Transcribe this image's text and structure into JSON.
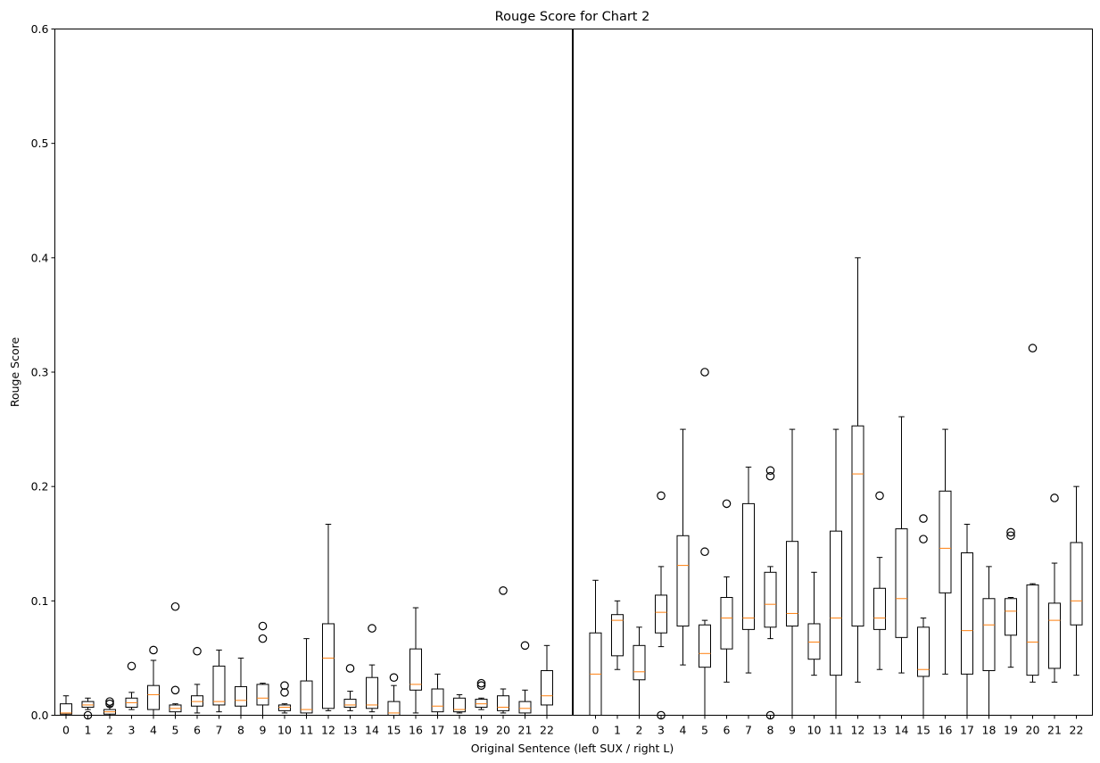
{
  "chart_data": {
    "type": "boxplot",
    "title": "Rouge Score for Chart 2",
    "xlabel": "Original Sentence (left SUX / right L)",
    "ylabel": "Rouge Score",
    "ylim": [
      0,
      0.6
    ],
    "yticks": [
      "0.0",
      "0.1",
      "0.2",
      "0.3",
      "0.4",
      "0.5",
      "0.6"
    ],
    "grid": false,
    "divider": "vertical line between left and right groups",
    "colors": {
      "box": "#000000",
      "median": "#ff7f0e",
      "outlier": "#000000"
    },
    "groups": [
      {
        "categories": [
          "0",
          "1",
          "2",
          "3",
          "4",
          "5",
          "6",
          "7",
          "8",
          "9",
          "10",
          "11",
          "12",
          "13",
          "14",
          "15",
          "16",
          "17",
          "18",
          "19",
          "20",
          "21",
          "22"
        ],
        "boxes": [
          {
            "wl": 0.0,
            "q1": 0.001,
            "med": 0.002,
            "q3": 0.01,
            "wh": 0.017,
            "outliers": []
          },
          {
            "wl": 0.005,
            "q1": 0.007,
            "med": 0.009,
            "q3": 0.012,
            "wh": 0.015,
            "outliers": [
              0.0
            ]
          },
          {
            "wl": 0.0,
            "q1": 0.001,
            "med": 0.003,
            "q3": 0.005,
            "wh": 0.008,
            "outliers": [
              0.01,
              0.012
            ]
          },
          {
            "wl": 0.005,
            "q1": 0.007,
            "med": 0.011,
            "q3": 0.015,
            "wh": 0.02,
            "outliers": [
              0.043
            ]
          },
          {
            "wl": 0.0,
            "q1": 0.005,
            "med": 0.018,
            "q3": 0.026,
            "wh": 0.048,
            "outliers": [
              0.057
            ]
          },
          {
            "wl": 0.0,
            "q1": 0.003,
            "med": 0.006,
            "q3": 0.009,
            "wh": 0.01,
            "outliers": [
              0.022,
              0.095
            ]
          },
          {
            "wl": 0.002,
            "q1": 0.008,
            "med": 0.012,
            "q3": 0.017,
            "wh": 0.027,
            "outliers": [
              0.056
            ]
          },
          {
            "wl": 0.003,
            "q1": 0.009,
            "med": 0.012,
            "q3": 0.043,
            "wh": 0.057,
            "outliers": []
          },
          {
            "wl": 0.0,
            "q1": 0.008,
            "med": 0.013,
            "q3": 0.025,
            "wh": 0.05,
            "outliers": []
          },
          {
            "wl": 0.0,
            "q1": 0.009,
            "med": 0.015,
            "q3": 0.027,
            "wh": 0.028,
            "outliers": [
              0.067,
              0.078
            ]
          },
          {
            "wl": 0.002,
            "q1": 0.004,
            "med": 0.007,
            "q3": 0.009,
            "wh": 0.01,
            "outliers": [
              0.02,
              0.026
            ]
          },
          {
            "wl": 0.0,
            "q1": 0.002,
            "med": 0.005,
            "q3": 0.03,
            "wh": 0.067,
            "outliers": []
          },
          {
            "wl": 0.004,
            "q1": 0.006,
            "med": 0.05,
            "q3": 0.08,
            "wh": 0.167,
            "outliers": []
          },
          {
            "wl": 0.004,
            "q1": 0.007,
            "med": 0.009,
            "q3": 0.014,
            "wh": 0.021,
            "outliers": [
              0.041
            ]
          },
          {
            "wl": 0.003,
            "q1": 0.006,
            "med": 0.009,
            "q3": 0.033,
            "wh": 0.044,
            "outliers": [
              0.076
            ]
          },
          {
            "wl": 0.0,
            "q1": 0.0,
            "med": 0.002,
            "q3": 0.012,
            "wh": 0.026,
            "outliers": [
              0.033
            ]
          },
          {
            "wl": 0.002,
            "q1": 0.022,
            "med": 0.027,
            "q3": 0.058,
            "wh": 0.094,
            "outliers": []
          },
          {
            "wl": 0.0,
            "q1": 0.003,
            "med": 0.008,
            "q3": 0.023,
            "wh": 0.036,
            "outliers": []
          },
          {
            "wl": 0.002,
            "q1": 0.003,
            "med": 0.005,
            "q3": 0.015,
            "wh": 0.018,
            "outliers": []
          },
          {
            "wl": 0.005,
            "q1": 0.007,
            "med": 0.01,
            "q3": 0.014,
            "wh": 0.015,
            "outliers": [
              0.026,
              0.028
            ]
          },
          {
            "wl": 0.002,
            "q1": 0.004,
            "med": 0.007,
            "q3": 0.017,
            "wh": 0.023,
            "outliers": [
              0.109
            ]
          },
          {
            "wl": 0.0,
            "q1": 0.002,
            "med": 0.006,
            "q3": 0.012,
            "wh": 0.022,
            "outliers": [
              0.061
            ]
          },
          {
            "wl": 0.0,
            "q1": 0.009,
            "med": 0.017,
            "q3": 0.039,
            "wh": 0.061,
            "outliers": []
          }
        ]
      },
      {
        "categories": [
          "0",
          "1",
          "2",
          "3",
          "4",
          "5",
          "6",
          "7",
          "8",
          "9",
          "10",
          "11",
          "12",
          "13",
          "14",
          "15",
          "16",
          "17",
          "18",
          "19",
          "20",
          "21",
          "22"
        ],
        "boxes": [
          {
            "wl": 0.0,
            "q1": 0.0,
            "med": 0.036,
            "q3": 0.072,
            "wh": 0.118,
            "outliers": []
          },
          {
            "wl": 0.04,
            "q1": 0.052,
            "med": 0.083,
            "q3": 0.088,
            "wh": 0.1,
            "outliers": []
          },
          {
            "wl": 0.0,
            "q1": 0.031,
            "med": 0.038,
            "q3": 0.061,
            "wh": 0.077,
            "outliers": []
          },
          {
            "wl": 0.06,
            "q1": 0.072,
            "med": 0.09,
            "q3": 0.105,
            "wh": 0.13,
            "outliers": [
              0.0,
              0.192
            ]
          },
          {
            "wl": 0.044,
            "q1": 0.078,
            "med": 0.131,
            "q3": 0.157,
            "wh": 0.25,
            "outliers": []
          },
          {
            "wl": 0.0,
            "q1": 0.042,
            "med": 0.054,
            "q3": 0.079,
            "wh": 0.083,
            "outliers": [
              0.143,
              0.3
            ]
          },
          {
            "wl": 0.029,
            "q1": 0.058,
            "med": 0.085,
            "q3": 0.103,
            "wh": 0.121,
            "outliers": [
              0.185
            ]
          },
          {
            "wl": 0.037,
            "q1": 0.075,
            "med": 0.085,
            "q3": 0.185,
            "wh": 0.217,
            "outliers": []
          },
          {
            "wl": 0.067,
            "q1": 0.077,
            "med": 0.097,
            "q3": 0.125,
            "wh": 0.13,
            "outliers": [
              0.0,
              0.209,
              0.214
            ]
          },
          {
            "wl": 0.0,
            "q1": 0.078,
            "med": 0.089,
            "q3": 0.152,
            "wh": 0.25,
            "outliers": []
          },
          {
            "wl": 0.035,
            "q1": 0.049,
            "med": 0.064,
            "q3": 0.08,
            "wh": 0.125,
            "outliers": []
          },
          {
            "wl": 0.0,
            "q1": 0.035,
            "med": 0.085,
            "q3": 0.161,
            "wh": 0.25,
            "outliers": []
          },
          {
            "wl": 0.029,
            "q1": 0.078,
            "med": 0.211,
            "q3": 0.253,
            "wh": 0.4,
            "outliers": []
          },
          {
            "wl": 0.04,
            "q1": 0.075,
            "med": 0.085,
            "q3": 0.111,
            "wh": 0.138,
            "outliers": [
              0.192
            ]
          },
          {
            "wl": 0.037,
            "q1": 0.068,
            "med": 0.102,
            "q3": 0.163,
            "wh": 0.261,
            "outliers": []
          },
          {
            "wl": 0.0,
            "q1": 0.034,
            "med": 0.04,
            "q3": 0.077,
            "wh": 0.085,
            "outliers": [
              0.154,
              0.172
            ]
          },
          {
            "wl": 0.036,
            "q1": 0.107,
            "med": 0.146,
            "q3": 0.196,
            "wh": 0.25,
            "outliers": []
          },
          {
            "wl": 0.0,
            "q1": 0.036,
            "med": 0.074,
            "q3": 0.142,
            "wh": 0.167,
            "outliers": []
          },
          {
            "wl": 0.0,
            "q1": 0.039,
            "med": 0.079,
            "q3": 0.102,
            "wh": 0.13,
            "outliers": []
          },
          {
            "wl": 0.042,
            "q1": 0.07,
            "med": 0.091,
            "q3": 0.102,
            "wh": 0.103,
            "outliers": [
              0.157,
              0.16
            ]
          },
          {
            "wl": 0.029,
            "q1": 0.035,
            "med": 0.064,
            "q3": 0.114,
            "wh": 0.115,
            "outliers": [
              0.321
            ]
          },
          {
            "wl": 0.029,
            "q1": 0.041,
            "med": 0.083,
            "q3": 0.098,
            "wh": 0.133,
            "outliers": [
              0.19
            ]
          },
          {
            "wl": 0.035,
            "q1": 0.079,
            "med": 0.1,
            "q3": 0.151,
            "wh": 0.2,
            "outliers": []
          }
        ]
      }
    ]
  }
}
